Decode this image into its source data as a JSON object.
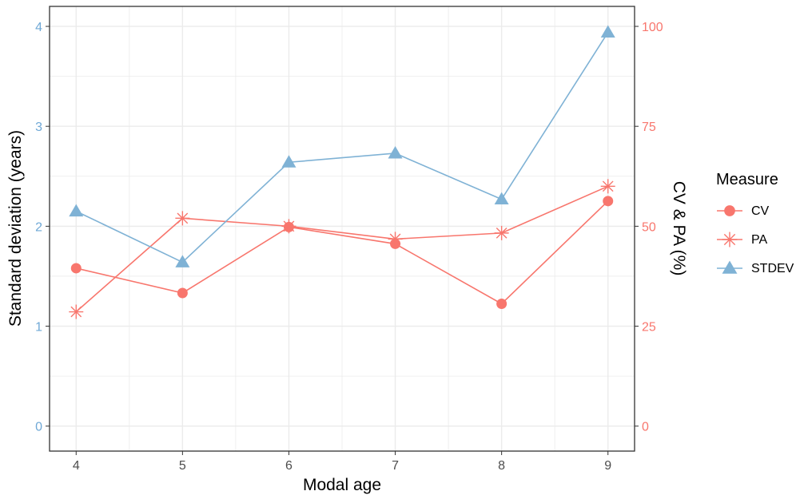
{
  "colors": {
    "cv": "#F8766D",
    "pa": "#F8766D",
    "stdev": "#7FB2D5",
    "left_axis": "#6FA8D6",
    "right_axis": "#F8766D",
    "grid": "#EBEBEB"
  },
  "chart_data": {
    "type": "line",
    "xlabel": "Modal age",
    "ylabel": "Standard deviation (years)",
    "y2label": "CV & PA (%)",
    "x": [
      4,
      5,
      6,
      7,
      8,
      9
    ],
    "xlim": [
      3.75,
      9.25
    ],
    "ylim": [
      -0.25,
      4.2
    ],
    "y2lim": [
      -6.25,
      105
    ],
    "y_ticks": [
      0,
      1,
      2,
      3,
      4
    ],
    "y2_ticks": [
      0,
      25,
      50,
      75,
      100
    ],
    "grid": true,
    "legend": {
      "title": "Measure",
      "position": "right",
      "entries": [
        {
          "label": "CV",
          "marker": "circle"
        },
        {
          "label": "PA",
          "marker": "asterisk"
        },
        {
          "label": "STDEV",
          "marker": "triangle"
        }
      ]
    },
    "series": [
      {
        "name": "CV",
        "axis": "right",
        "marker": "circle",
        "values": [
          39.5,
          33.3,
          49.8,
          45.6,
          30.6,
          56.3
        ]
      },
      {
        "name": "PA",
        "axis": "right",
        "marker": "asterisk",
        "values": [
          28.6,
          52.0,
          50.0,
          46.8,
          48.3,
          60.0
        ]
      },
      {
        "name": "STDEV",
        "axis": "left",
        "marker": "triangle",
        "values": [
          2.15,
          1.64,
          2.64,
          2.73,
          2.27,
          3.94
        ]
      }
    ]
  }
}
